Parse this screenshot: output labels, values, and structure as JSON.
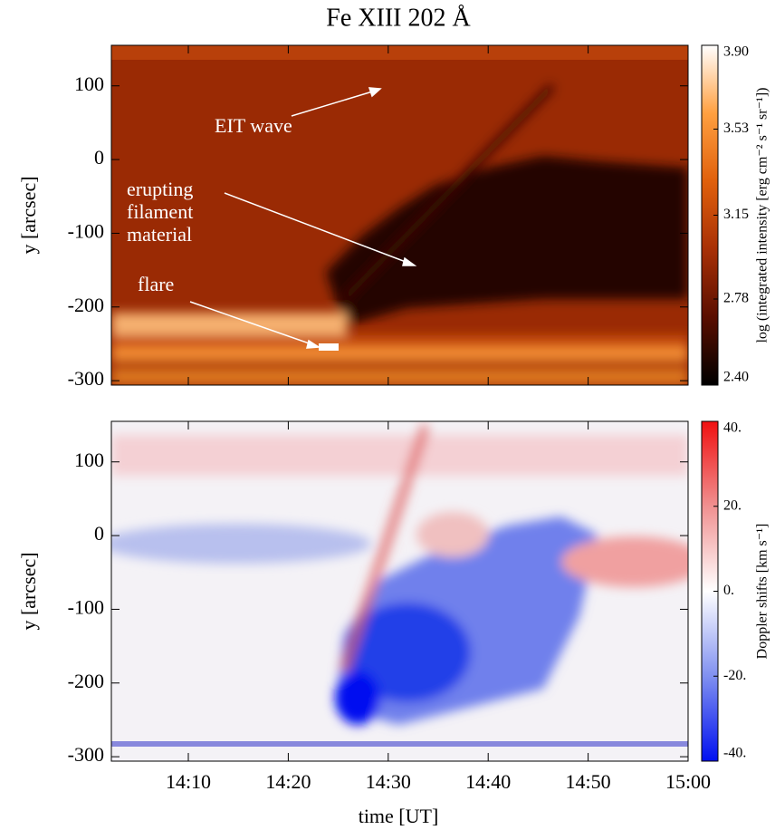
{
  "chart_data": [
    {
      "type": "heatmap",
      "title": "Fe XIII 202 Å",
      "ylabel": "y [arcsec]",
      "ylim": [
        -306,
        155
      ],
      "yticks": [
        100,
        0,
        -100,
        -200,
        -300
      ],
      "colorbar": {
        "label": "log (integrated intensity [erg cm⁻² s⁻¹ sr⁻¹])",
        "lim": [
          2.4,
          3.9
        ],
        "ticks": [
          {
            "value": 3.9,
            "label": "3.90"
          },
          3.53,
          3.15,
          2.78,
          {
            "value": 2.4,
            "label": "2.40"
          }
        ],
        "colors": [
          "#000000",
          "#5a0e00",
          "#a83006",
          "#e0600c",
          "#ffa040",
          "#ffffff"
        ]
      },
      "annotations": [
        "EIT wave",
        "erupting",
        "filament",
        "material",
        "flare"
      ]
    },
    {
      "type": "heatmap",
      "xlabel": "time [UT]",
      "ylabel": "y [arcsec]",
      "ylim": [
        -306,
        155
      ],
      "yticks": [
        100,
        0,
        -100,
        -200,
        -300
      ],
      "xlim": [
        2.3,
        60
      ],
      "xticks": [
        {
          "value": 10,
          "label": "14:10"
        },
        {
          "value": 20,
          "label": "14:20"
        },
        {
          "value": 30,
          "label": "14:30"
        },
        {
          "value": 40,
          "label": "14:40"
        },
        {
          "value": 50,
          "label": "14:50"
        },
        {
          "value": 60,
          "label": "15:00"
        }
      ],
      "colorbar": {
        "label": "Doppler shifts [km s⁻¹]",
        "lim": [
          -40,
          40
        ],
        "ticks": [
          {
            "value": 40,
            "label": "40."
          },
          {
            "value": 20,
            "label": "20."
          },
          {
            "value": 0,
            "label": "0."
          },
          {
            "value": -20,
            "label": "-20."
          },
          {
            "value": -40,
            "label": "-40."
          }
        ],
        "colors": [
          "#0010f0",
          "#8090f0",
          "#ffffff",
          "#f09090",
          "#f01010"
        ]
      }
    }
  ]
}
